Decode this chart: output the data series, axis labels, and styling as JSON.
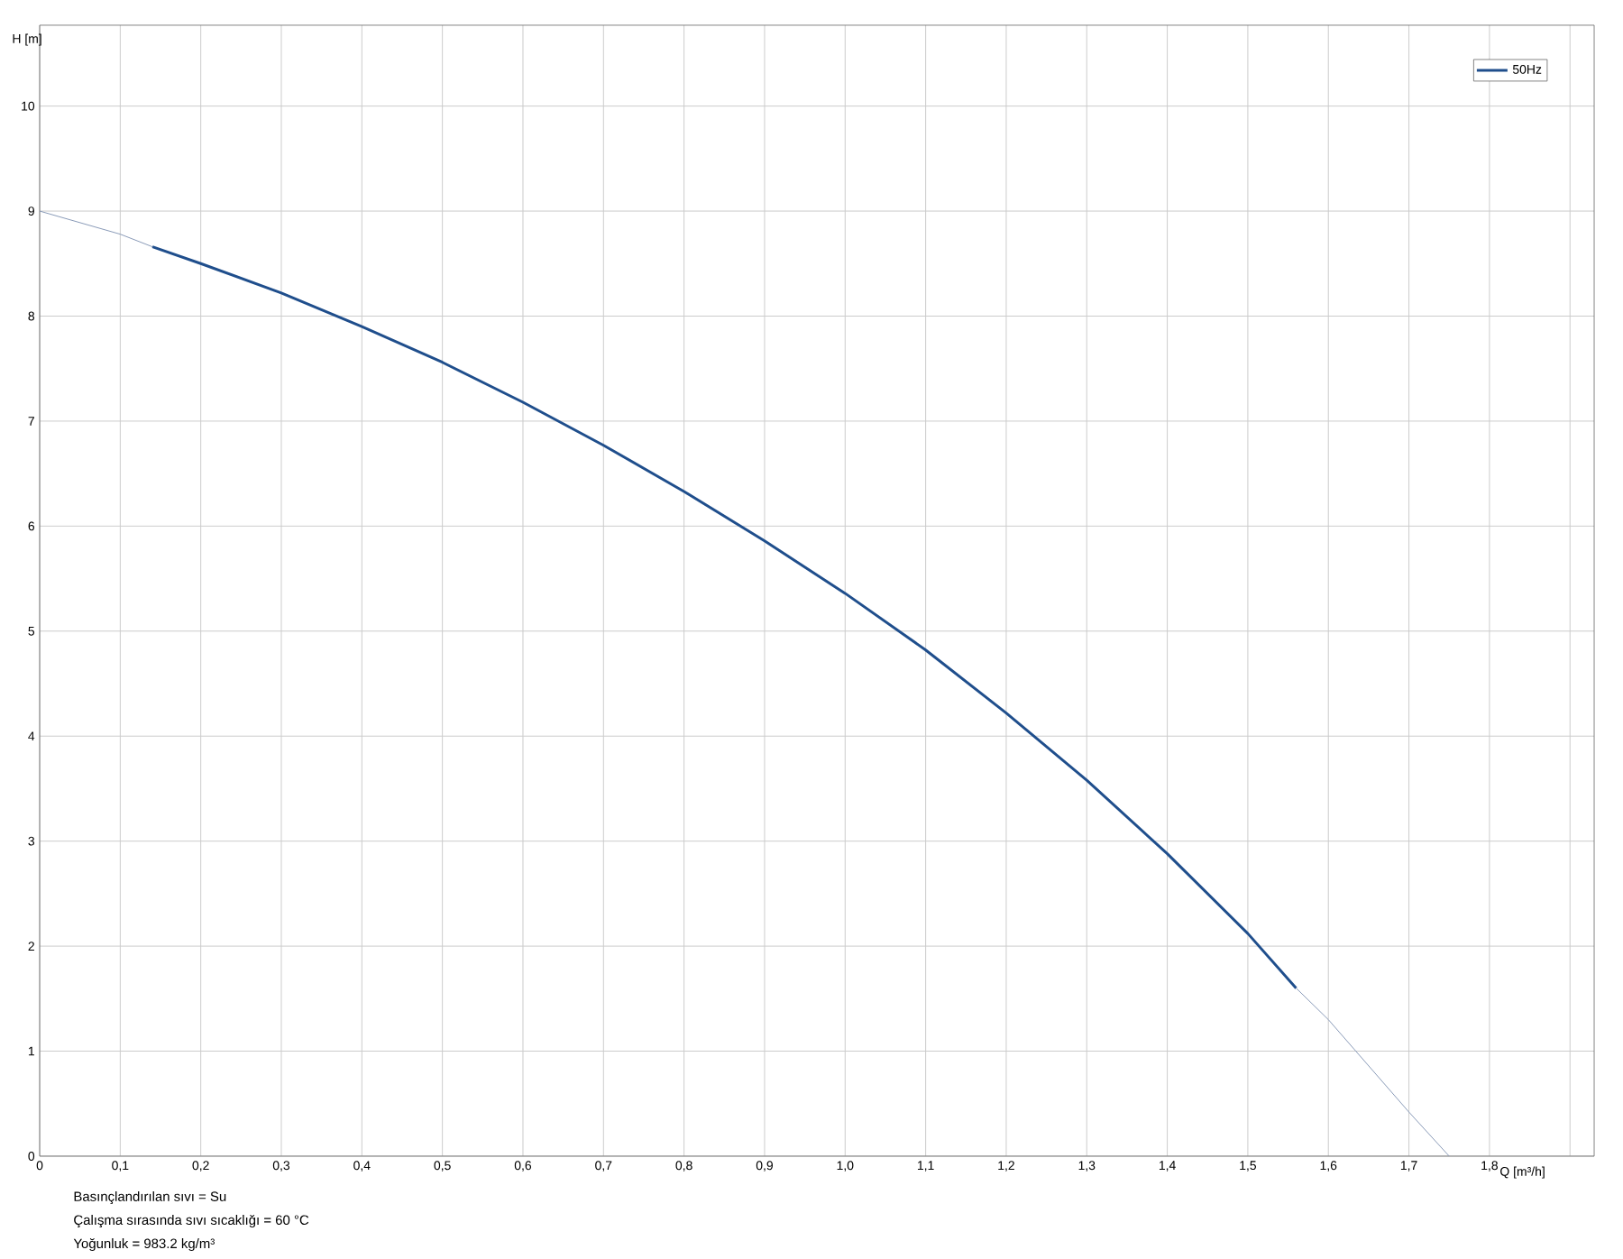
{
  "chart_data": {
    "type": "line",
    "xlabel": "Q [m³/h]",
    "ylabel": "H [m]",
    "xlim": [
      0,
      1.93
    ],
    "ylim": [
      0,
      10.77
    ],
    "xticks": [
      0,
      {
        "value": 0.1,
        "label": "0,1"
      },
      {
        "value": 0.2,
        "label": "0,2"
      },
      {
        "value": 0.3,
        "label": "0,3"
      },
      {
        "value": 0.4,
        "label": "0,4"
      },
      {
        "value": 0.5,
        "label": "0,5"
      },
      {
        "value": 0.6,
        "label": "0,6"
      },
      {
        "value": 0.7,
        "label": "0,7"
      },
      {
        "value": 0.8,
        "label": "0,8"
      },
      {
        "value": 0.9,
        "label": "0,9"
      },
      {
        "value": 1.0,
        "label": "1,0"
      },
      {
        "value": 1.1,
        "label": "1,1"
      },
      {
        "value": 1.2,
        "label": "1,2"
      },
      {
        "value": 1.3,
        "label": "1,3"
      },
      {
        "value": 1.4,
        "label": "1,4"
      },
      {
        "value": 1.5,
        "label": "1,5"
      },
      {
        "value": 1.6,
        "label": "1,6"
      },
      {
        "value": 1.7,
        "label": "1,7"
      },
      {
        "value": 1.8,
        "label": "1,8"
      },
      {
        "value": 1.9,
        "label": null
      }
    ],
    "yticks": [
      0,
      1,
      2,
      3,
      4,
      5,
      6,
      7,
      8,
      9,
      10
    ],
    "grid": true,
    "legend": "top right",
    "marker": "none",
    "line_style": "solid",
    "series": [
      {
        "name": "50Hz",
        "color": "#1f4e8c",
        "x": [
          0.14,
          0.2,
          0.3,
          0.4,
          0.5,
          0.6,
          0.7,
          0.8,
          0.9,
          1.0,
          1.1,
          1.2,
          1.3,
          1.4,
          1.5,
          1.56
        ],
        "values": [
          8.66,
          8.5,
          8.22,
          7.9,
          7.56,
          7.18,
          6.77,
          6.33,
          5.86,
          5.36,
          4.82,
          4.22,
          3.58,
          2.88,
          2.12,
          1.6
        ]
      },
      {
        "color": "#8a9bb8",
        "x": [
          0,
          0.1,
          0.14,
          0.85,
          1.56,
          1.6,
          1.7,
          1.75
        ],
        "values": [
          9.0,
          8.78,
          8.66,
          null,
          1.6,
          1.3,
          0.42,
          0.0
        ]
      }
    ],
    "annotations": [
      "Basınçlandırılan sıvı = Su",
      "Çalışma sırasında sıvı sıcaklığı = 60 °C",
      "Yoğunluk = 983.2 kg/m³"
    ]
  }
}
